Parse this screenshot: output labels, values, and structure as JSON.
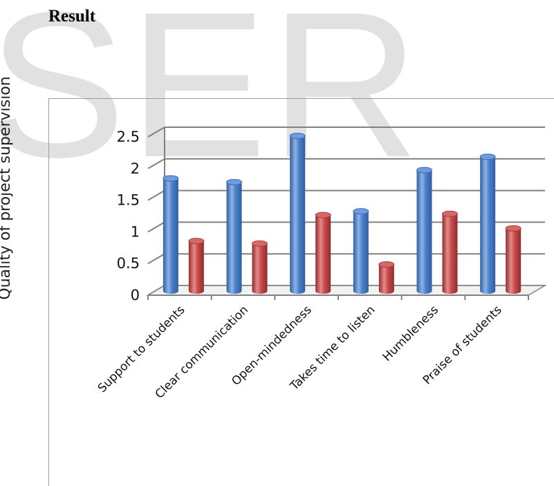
{
  "heading": "Result",
  "watermark": "SER",
  "chart_data": {
    "type": "bar",
    "title": "",
    "xlabel": "",
    "ylabel": "Quality of project supervision",
    "ylim": [
      0,
      2.5
    ],
    "yticks": [
      "0",
      "0.5",
      "1",
      "1.5",
      "2",
      "2.5"
    ],
    "categories": [
      "Support to students",
      "Clear communication",
      "Open-mindedness",
      "Takes time to listen",
      "Humbleness",
      "Praise of students"
    ],
    "series": [
      {
        "color": "#4a7fc9",
        "values": [
          1.78,
          1.72,
          2.45,
          1.26,
          1.91,
          2.12
        ]
      },
      {
        "color": "#c84a4a",
        "values": [
          0.79,
          0.75,
          1.2,
          0.42,
          1.22,
          0.99
        ]
      }
    ],
    "grid": true,
    "legend": "none",
    "style": "3d-cylinder"
  }
}
